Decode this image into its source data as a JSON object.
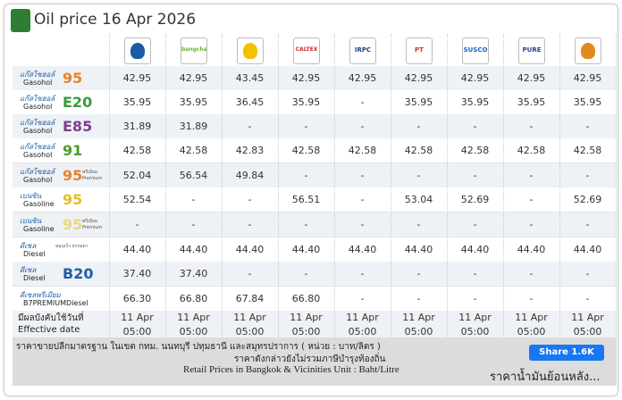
{
  "header": {
    "title": "Oil price 16 Apr 2026"
  },
  "logos": [
    null,
    "bangchak",
    null,
    "CALTEX",
    "IRPC",
    "PT",
    "SUSCO",
    "PURE",
    null
  ],
  "rows": [
    {
      "thai": "แก๊สโซฮอล์",
      "english": "Gasohol",
      "code": "95",
      "code_color": "#e8822a",
      "values": [
        "42.95",
        "42.95",
        "43.45",
        "42.95",
        "42.95",
        "42.95",
        "42.95",
        "42.95",
        "42.95"
      ]
    },
    {
      "thai": "แก๊สโซฮอล์",
      "english": "Gasohol",
      "code": "E20",
      "code_color": "#3a9a3a",
      "values": [
        "35.95",
        "35.95",
        "36.45",
        "35.95",
        "-",
        "35.95",
        "35.95",
        "35.95",
        "35.95"
      ]
    },
    {
      "thai": "แก๊สโซฮอล์",
      "english": "Gasohol",
      "code": "E85",
      "code_color": "#7b3f8c",
      "values": [
        "31.89",
        "31.89",
        "-",
        "-",
        "-",
        "-",
        "-",
        "-",
        "-"
      ]
    },
    {
      "thai": "แก๊สโซฮอล์",
      "english": "Gasohol",
      "code": "91",
      "code_color": "#4a9a2a",
      "values": [
        "42.58",
        "42.58",
        "42.83",
        "42.58",
        "42.58",
        "42.58",
        "42.58",
        "42.58",
        "42.58"
      ]
    },
    {
      "thai": "แก๊สโซฮอล์",
      "english": "Gasohol",
      "code": "95",
      "suffix_thai": "พรีเมียม",
      "suffix": "Premium",
      "code_color": "#e8822a",
      "values": [
        "52.04",
        "56.54",
        "49.84",
        "-",
        "-",
        "-",
        "-",
        "-",
        "-"
      ]
    },
    {
      "thai": "เบนซิน",
      "english": "Gasoline",
      "code": "95",
      "code_color": "#e3c01e",
      "values": [
        "52.54",
        "-",
        "-",
        "56.51",
        "-",
        "53.04",
        "52.69",
        "-",
        "52.69"
      ]
    },
    {
      "thai": "เบนซิน",
      "english": "Gasoline",
      "code": "95",
      "suffix_thai": "พรีเมียม",
      "suffix": "Premium",
      "code_color": "#ecd97a",
      "values": [
        "-",
        "-",
        "-",
        "-",
        "-",
        "-",
        "-",
        "-",
        "-"
      ]
    },
    {
      "thai": "ดีเซล",
      "english": "Diesel",
      "suffix_thai": "หมุนเร็ว ธรรมดา",
      "values": [
        "44.40",
        "44.40",
        "44.40",
        "44.40",
        "44.40",
        "44.40",
        "44.40",
        "44.40",
        "44.40"
      ]
    },
    {
      "thai": "ดีเซล",
      "english": "Diesel",
      "code": "B20",
      "code_color": "#1f5fa8",
      "values": [
        "37.40",
        "37.40",
        "-",
        "-",
        "-",
        "-",
        "-",
        "-",
        "-"
      ]
    },
    {
      "thai": "ดีเซลพรีเมียม",
      "english": "B7PREMIUMDiesel",
      "values": [
        "66.30",
        "66.80",
        "67.84",
        "66.80",
        "-",
        "-",
        "-",
        "-",
        "-"
      ]
    }
  ],
  "effective": {
    "thai": "มีผลบังคับใช้วันที่",
    "english": "Effective date",
    "dates": [
      "11 Apr",
      "11 Apr",
      "11 Apr",
      "11 Apr",
      "11 Apr",
      "11 Apr",
      "11 Apr",
      "11 Apr",
      "11 Apr"
    ],
    "times": [
      "05:00",
      "05:00",
      "05:00",
      "05:00",
      "05:00",
      "05:00",
      "05:00",
      "05:00",
      "05:00"
    ]
  },
  "footer": {
    "line1": "ราคาขายปลีกมาตรฐาน ในเขต กทม. นนทบุรี ปทุมธานี และสมุทรปราการ ( หน่วย : บาท/ลิตร )",
    "line2": "ราคาดังกล่าวยังไม่รวมภาษีบำรุงท้องถิ่น",
    "line3": "Retail Prices in Bangkok & Vicinities Unit : Baht/Litre",
    "share": "Share 1.6K",
    "history": "ราคาน้ำมันย้อนหลัง..."
  }
}
